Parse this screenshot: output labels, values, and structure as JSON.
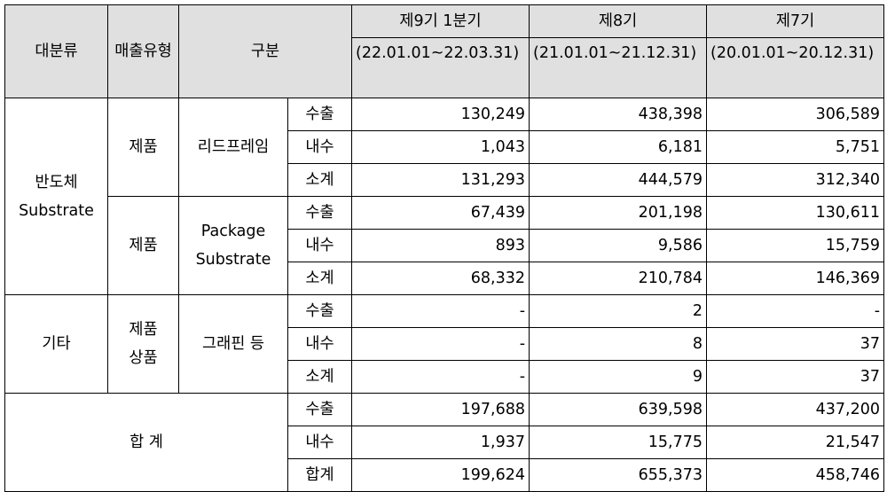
{
  "header": {
    "major": "대분류",
    "sales_type": "매출유형",
    "category": "구분",
    "periods": [
      {
        "label": "제9기 1분기",
        "range": "(22.01.01~22.03.31)"
      },
      {
        "label": "제8기",
        "range": "(21.01.01~21.12.31)"
      },
      {
        "label": "제7기",
        "range": "(20.01.01~20.12.31)"
      }
    ]
  },
  "groups": [
    {
      "major_line1": "반도체",
      "major_line2": "Substrate",
      "subgroups": [
        {
          "sales_type": "제품",
          "product": "리드프레임",
          "rows": [
            {
              "kind": "수출",
              "values": [
                "130,249",
                "438,398",
                "306,589"
              ]
            },
            {
              "kind": "내수",
              "values": [
                "1,043",
                "6,181",
                "5,751"
              ]
            },
            {
              "kind": "소계",
              "values": [
                "131,293",
                "444,579",
                "312,340"
              ]
            }
          ]
        },
        {
          "sales_type": "제품",
          "product_line1": "Package",
          "product_line2": "Substrate",
          "rows": [
            {
              "kind": "수출",
              "values": [
                "67,439",
                "201,198",
                "130,611"
              ]
            },
            {
              "kind": "내수",
              "values": [
                "893",
                "9,586",
                "15,759"
              ]
            },
            {
              "kind": "소계",
              "values": [
                "68,332",
                "210,784",
                "146,369"
              ]
            }
          ]
        }
      ]
    },
    {
      "major": "기타",
      "sales_type_line1": "제품",
      "sales_type_line2": "상품",
      "product": "그래핀 등",
      "rows": [
        {
          "kind": "수출",
          "values": [
            "-",
            "2",
            "-"
          ]
        },
        {
          "kind": "내수",
          "values": [
            "-",
            "8",
            "37"
          ]
        },
        {
          "kind": "소계",
          "values": [
            "-",
            "9",
            "37"
          ]
        }
      ]
    }
  ],
  "total": {
    "label": "합 계",
    "rows": [
      {
        "kind": "수출",
        "values": [
          "197,688",
          "639,598",
          "437,200"
        ]
      },
      {
        "kind": "내수",
        "values": [
          "1,937",
          "15,775",
          "21,547"
        ]
      },
      {
        "kind": "합계",
        "values": [
          "199,624",
          "655,373",
          "458,746"
        ]
      }
    ]
  }
}
